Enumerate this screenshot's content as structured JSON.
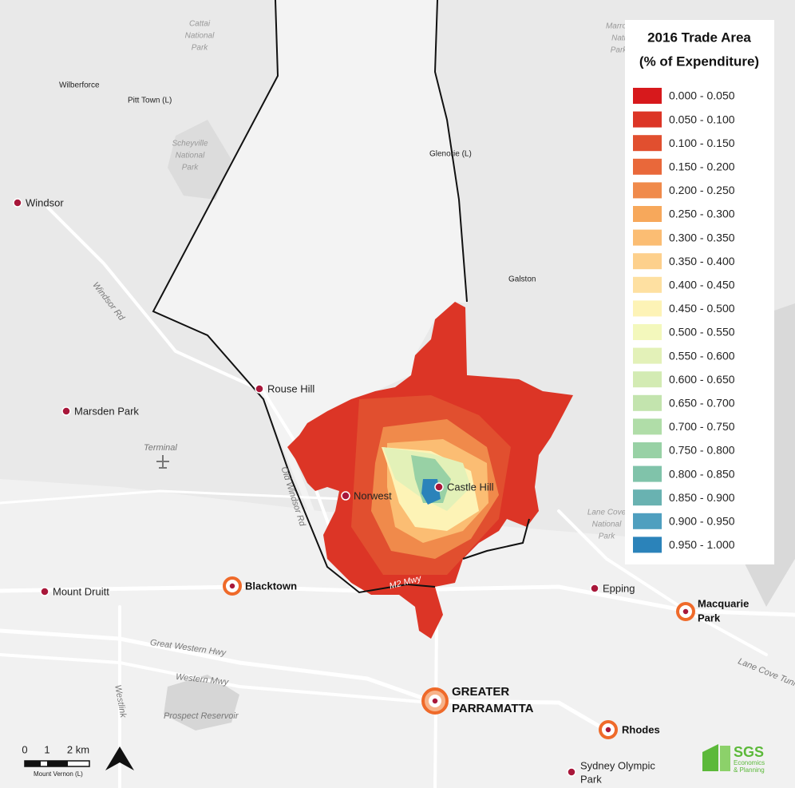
{
  "legend": {
    "title": [
      "2016 Trade Area",
      "(% of Expenditure)"
    ],
    "items": [
      {
        "label": "0.000 - 0.050",
        "color": "#d7191c"
      },
      {
        "label": "0.050 - 0.100",
        "color": "#dc3526"
      },
      {
        "label": "0.100 - 0.150",
        "color": "#e14f2f"
      },
      {
        "label": "0.150 - 0.200",
        "color": "#e9683a"
      },
      {
        "label": "0.200 - 0.250",
        "color": "#f08a4b"
      },
      {
        "label": "0.250 - 0.300",
        "color": "#f7a85b"
      },
      {
        "label": "0.300 - 0.350",
        "color": "#fbbd73"
      },
      {
        "label": "0.350 - 0.400",
        "color": "#fdd08c"
      },
      {
        "label": "0.400 - 0.450",
        "color": "#fee0a1"
      },
      {
        "label": "0.450 - 0.500",
        "color": "#fdf3b6"
      },
      {
        "label": "0.500 - 0.550",
        "color": "#f3f8bc"
      },
      {
        "label": "0.550 - 0.600",
        "color": "#e3f1b8"
      },
      {
        "label": "0.600 - 0.650",
        "color": "#d3ebb3"
      },
      {
        "label": "0.650 - 0.700",
        "color": "#c3e4ae"
      },
      {
        "label": "0.700 - 0.750",
        "color": "#b0dda8"
      },
      {
        "label": "0.750 - 0.800",
        "color": "#98d1a5"
      },
      {
        "label": "0.800 - 0.850",
        "color": "#80c3aa"
      },
      {
        "label": "0.850 - 0.900",
        "color": "#69b2b1"
      },
      {
        "label": "0.900 - 0.950",
        "color": "#4f9fbf"
      },
      {
        "label": "0.950 - 1.000",
        "color": "#2b83ba"
      }
    ]
  },
  "parks": [
    [
      "Cattai",
      "National",
      "Park"
    ],
    [
      "Scheyville",
      "National",
      "Park"
    ],
    [
      "Marro",
      "Nati",
      "Park"
    ],
    [
      "Lane Cove",
      "National",
      "Park"
    ]
  ],
  "suburbs": [
    "Wilberforce",
    "Pitt Town (L)",
    "Glenorie (L)",
    "Galston",
    "Terminal"
  ],
  "centres": [
    "Windsor",
    "Rouse Hill",
    "Marsden Park",
    "Norwest",
    "Castle Hill",
    "Mount Druitt",
    "Epping",
    [
      "Sydney Olympic",
      "Park"
    ]
  ],
  "major_centres": [
    "Blacktown",
    [
      "Macquarie",
      "Park"
    ],
    "Rhodes",
    [
      "GREATER",
      "PARRAMATTA"
    ]
  ],
  "roads": [
    "Windsor Rd",
    "Old Windsor Rd",
    "M2 Mwy",
    "Great Western Hwy",
    "Western Mwy",
    "Westlink",
    "Lane Cove Tunl",
    "Prospect Reservoir"
  ],
  "scale": {
    "labels": [
      "0",
      "1",
      "2 km"
    ],
    "place": "Mount Vernon (L)"
  },
  "logo": {
    "name": "SGS",
    "lines": [
      "Economics",
      "& Planning"
    ]
  }
}
